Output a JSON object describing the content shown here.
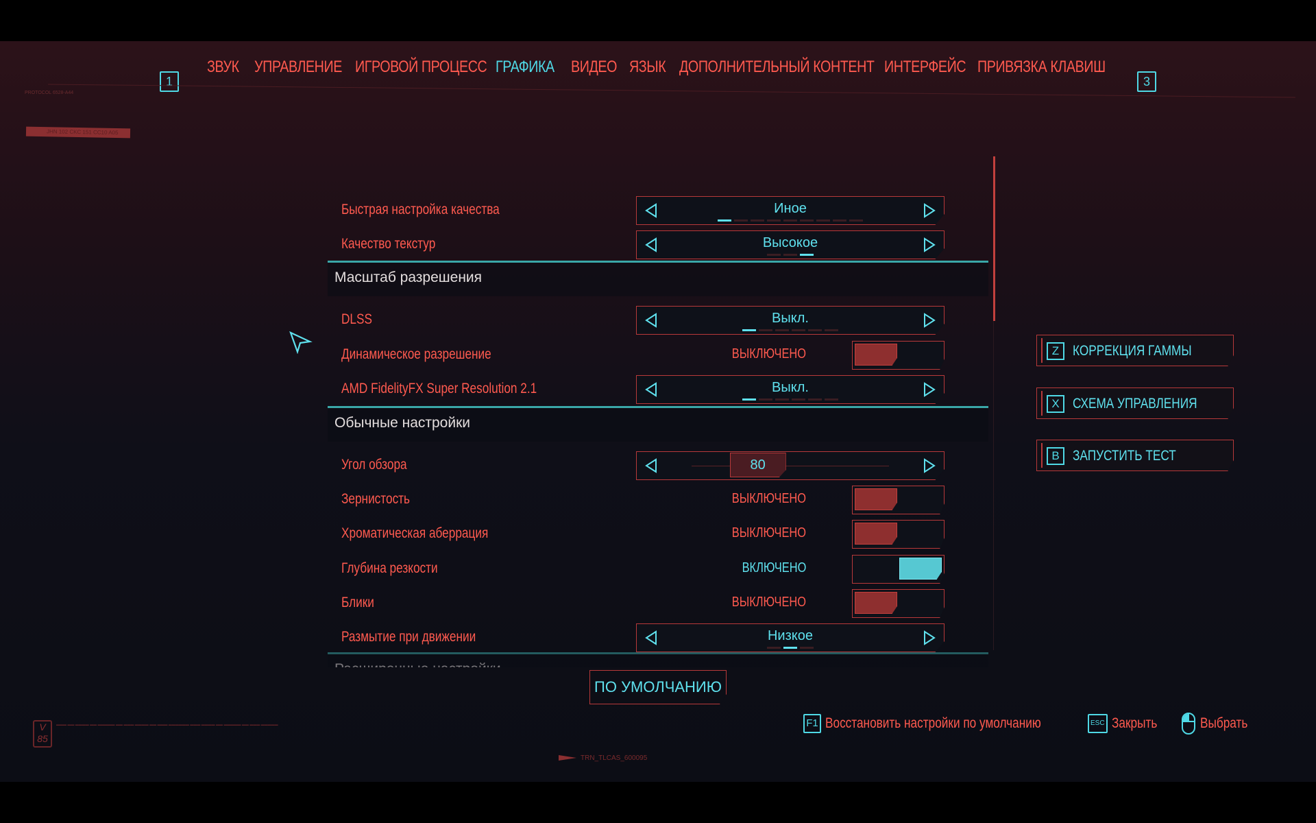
{
  "tabs": {
    "prev_key": "1",
    "next_key": "3",
    "items": [
      {
        "label": "ЗВУК",
        "active": false
      },
      {
        "label": "УПРАВЛЕНИЕ",
        "active": false
      },
      {
        "label": "ИГРОВОЙ ПРОЦЕСС",
        "active": false
      },
      {
        "label": "ГРАФИКА",
        "active": true
      },
      {
        "label": "ВИДЕО",
        "active": false
      },
      {
        "label": "ЯЗЫК",
        "active": false
      },
      {
        "label": "ДОПОЛНИТЕЛЬНЫЙ КОНТЕНТ",
        "active": false
      },
      {
        "label": "ИНТЕРФЕЙС",
        "active": false
      },
      {
        "label": "ПРИВЯЗКА КЛАВИШ",
        "active": false
      }
    ]
  },
  "decor": {
    "protocol": "PROTOCOL 6528-A44",
    "tag": "JHN 102 CKC 151 CC10 A05",
    "version_badge": "V 85",
    "trn_code": "TRN_TLCAS_600095"
  },
  "settings": [
    {
      "type": "selector",
      "label": "Быстрая настройка качества",
      "value": "Иное",
      "options_count": 9,
      "selected_index": 0
    },
    {
      "type": "selector",
      "label": "Качество текстур",
      "value": "Высокое",
      "options_count": 3,
      "selected_index": 2
    },
    {
      "type": "section",
      "label": "Масштаб разрешения"
    },
    {
      "type": "selector",
      "label": "DLSS",
      "value": "Выкл.",
      "options_count": 6,
      "selected_index": 0
    },
    {
      "type": "toggle",
      "label": "Динамическое разрешение",
      "value": "ВЫКЛЮЧЕНО",
      "on": false
    },
    {
      "type": "selector",
      "label": "AMD FidelityFX Super Resolution 2.1",
      "value": "Выкл.",
      "options_count": 6,
      "selected_index": 0
    },
    {
      "type": "section",
      "label": "Обычные настройки"
    },
    {
      "type": "slider",
      "label": "Угол обзора",
      "value": "80",
      "min": 70,
      "max": 100
    },
    {
      "type": "toggle",
      "label": "Зернистость",
      "value": "ВЫКЛЮЧЕНО",
      "on": false
    },
    {
      "type": "toggle",
      "label": "Хроматическая аберрация",
      "value": "ВЫКЛЮЧЕНО",
      "on": false
    },
    {
      "type": "toggle",
      "label": "Глубина резкости",
      "value": "ВКЛЮЧЕНО",
      "on": true
    },
    {
      "type": "toggle",
      "label": "Блики",
      "value": "ВЫКЛЮЧЕНО",
      "on": false
    },
    {
      "type": "selector",
      "label": "Размытие при движении",
      "value": "Низкое",
      "options_count": 3,
      "selected_index": 1
    },
    {
      "type": "section",
      "label": "Расширенные настройки"
    }
  ],
  "side_buttons": [
    {
      "key": "Z",
      "label": "КОРРЕКЦИЯ ГАММЫ"
    },
    {
      "key": "X",
      "label": "СХЕМА УПРАВЛЕНИЯ"
    },
    {
      "key": "B",
      "label": "ЗАПУСТИТЬ ТЕСТ"
    }
  ],
  "default_button": "ПО УМОЛЧАНИЮ",
  "hints": [
    {
      "key": "F1",
      "label": "Восстановить настройки по умолчанию"
    },
    {
      "key": "ESC",
      "label": "Закрыть"
    },
    {
      "key": "mouse-icon",
      "label": "Выбрать"
    }
  ],
  "colors": {
    "accent_red": "#ff5a4f",
    "accent_cyan": "#5fe1ee",
    "border_red": "#b8393a"
  }
}
